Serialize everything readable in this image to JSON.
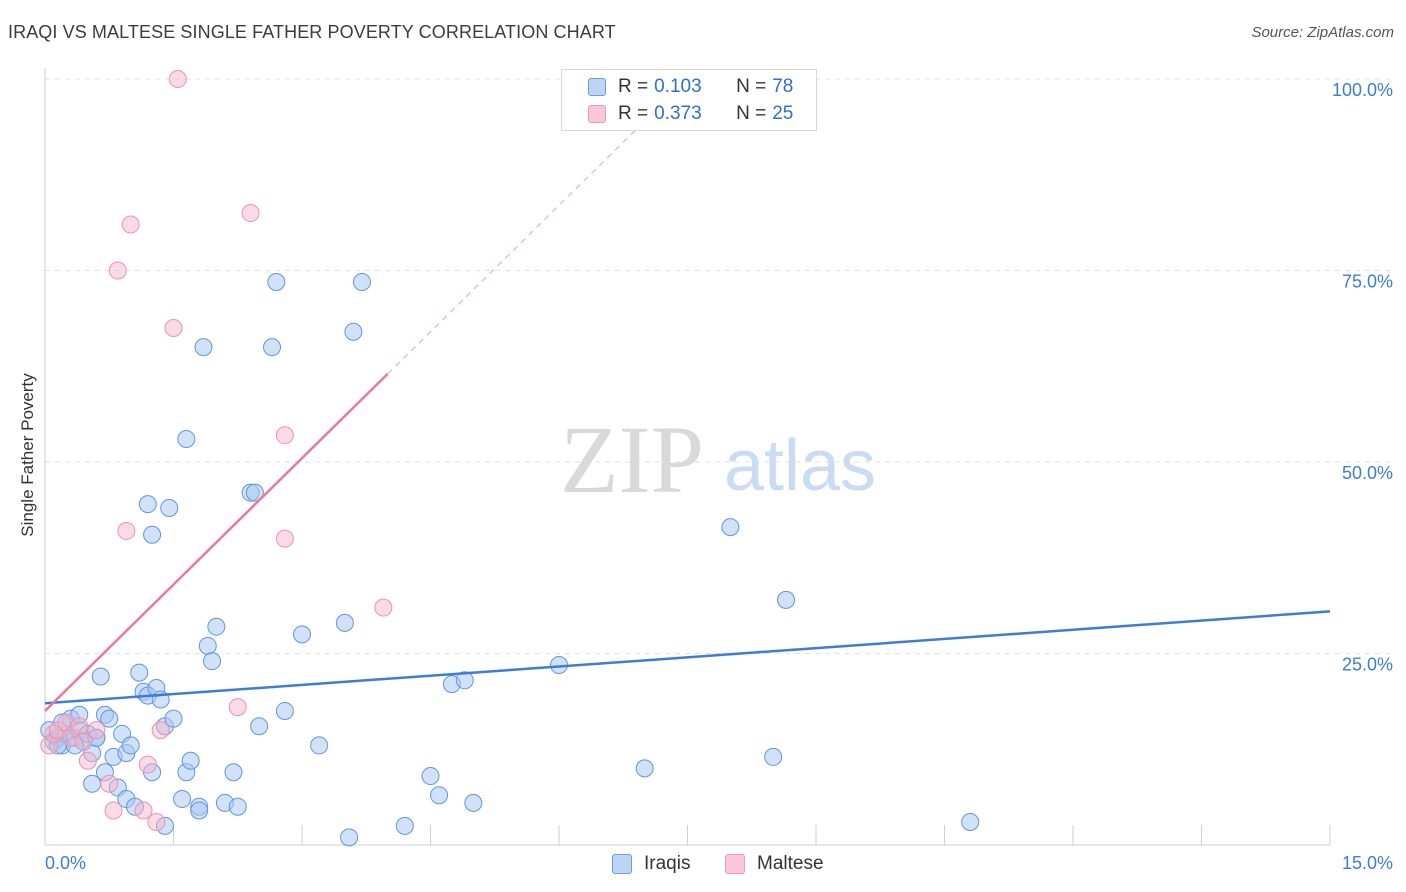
{
  "title": "IRAQI VS MALTESE SINGLE FATHER POVERTY CORRELATION CHART",
  "source": "Source: ZipAtlas.com",
  "watermark": {
    "zip": "ZIP",
    "atlas": "atlas"
  },
  "colors": {
    "iraqis": "#3b7dd8",
    "maltese": "#e87aa0",
    "iraqis_fill": "#a9c9f3",
    "maltese_fill": "#f6b6c9",
    "axis_text": "#3b7dd8"
  },
  "legend": {
    "rows": [
      {
        "r_label": "R =",
        "r_value": "0.103",
        "n_label": "N =",
        "n_value": "78"
      },
      {
        "r_label": "R =",
        "r_value": "0.373",
        "n_label": "N =",
        "n_value": "25"
      }
    ]
  },
  "bottom_legend": {
    "iraqis": "Iraqis",
    "maltese": "Maltese"
  },
  "chart_data": {
    "type": "scatter",
    "title": "IRAQI VS MALTESE SINGLE FATHER POVERTY CORRELATION CHART",
    "xlabel": "",
    "ylabel": "Single Father Poverty",
    "xlim": [
      0,
      15
    ],
    "ylim": [
      0,
      100
    ],
    "x_tick_labels": [
      "0.0%",
      "15.0%"
    ],
    "y_tick_labels": [
      "25.0%",
      "50.0%",
      "75.0%",
      "100.0%"
    ],
    "y_ticks": [
      25,
      50,
      75,
      100
    ],
    "grid": true,
    "series": [
      {
        "name": "Iraqis",
        "r": 0.103,
        "n": 78,
        "trend": {
          "x": [
            0,
            15
          ],
          "y": [
            18.5,
            30.5
          ]
        },
        "points": [
          [
            0.05,
            15
          ],
          [
            0.1,
            13.5
          ],
          [
            0.15,
            14
          ],
          [
            0.2,
            13
          ],
          [
            0.25,
            14.5
          ],
          [
            0.3,
            16.5
          ],
          [
            0.35,
            14
          ],
          [
            0.4,
            15
          ],
          [
            0.45,
            13.5
          ],
          [
            0.5,
            14.5
          ],
          [
            0.55,
            12
          ],
          [
            0.6,
            14
          ],
          [
            0.65,
            22
          ],
          [
            0.7,
            17
          ],
          [
            0.75,
            16.5
          ],
          [
            0.8,
            11.5
          ],
          [
            0.9,
            14.5
          ],
          [
            0.95,
            12
          ],
          [
            1.0,
            13
          ],
          [
            1.1,
            22.5
          ],
          [
            1.15,
            20
          ],
          [
            1.2,
            19.5
          ],
          [
            1.25,
            9.5
          ],
          [
            1.3,
            20.5
          ],
          [
            1.35,
            19
          ],
          [
            1.4,
            15.5
          ],
          [
            1.5,
            16.5
          ],
          [
            1.6,
            6
          ],
          [
            1.65,
            9.5
          ],
          [
            1.7,
            11
          ],
          [
            1.8,
            5
          ],
          [
            1.9,
            26
          ],
          [
            1.95,
            24
          ],
          [
            2.0,
            28.5
          ],
          [
            2.1,
            5.5
          ],
          [
            2.2,
            9.5
          ],
          [
            2.5,
            15.5
          ],
          [
            2.8,
            17.5
          ],
          [
            3.0,
            27.5
          ],
          [
            3.2,
            13
          ],
          [
            3.5,
            29
          ],
          [
            3.6,
            67
          ],
          [
            3.7,
            73.5
          ],
          [
            3.55,
            1
          ],
          [
            4.2,
            2.5
          ],
          [
            4.5,
            9
          ],
          [
            4.6,
            6.5
          ],
          [
            4.75,
            21
          ],
          [
            4.9,
            21.5
          ],
          [
            5.0,
            5.5
          ],
          [
            1.45,
            44
          ],
          [
            1.2,
            44.5
          ],
          [
            1.25,
            40.5
          ],
          [
            1.65,
            53
          ],
          [
            1.85,
            65
          ],
          [
            2.4,
            46
          ],
          [
            2.45,
            46
          ],
          [
            2.65,
            65
          ],
          [
            2.7,
            73.5
          ],
          [
            6.0,
            23.5
          ],
          [
            7.0,
            10
          ],
          [
            8.0,
            41.5
          ],
          [
            8.5,
            11.5
          ],
          [
            8.65,
            32
          ],
          [
            10.8,
            3
          ],
          [
            0.2,
            16
          ],
          [
            0.35,
            13
          ],
          [
            0.55,
            8
          ],
          [
            0.7,
            9.5
          ],
          [
            0.85,
            7.5
          ],
          [
            0.95,
            6
          ],
          [
            1.05,
            5
          ],
          [
            1.4,
            2.5
          ],
          [
            1.8,
            4.5
          ],
          [
            2.25,
            5
          ],
          [
            0.15,
            13
          ],
          [
            0.6,
            14
          ],
          [
            0.4,
            17
          ]
        ]
      },
      {
        "name": "Maltese",
        "r": 0.373,
        "n": 25,
        "trend": {
          "x": [
            0,
            4.0
          ],
          "y": [
            17.5,
            61.5
          ],
          "dashed_to": {
            "x": 7.5,
            "y": 100
          }
        },
        "points": [
          [
            0.05,
            13
          ],
          [
            0.1,
            14.5
          ],
          [
            0.15,
            15
          ],
          [
            0.25,
            16
          ],
          [
            0.3,
            14
          ],
          [
            0.4,
            15.5
          ],
          [
            0.45,
            13.5
          ],
          [
            0.5,
            11
          ],
          [
            0.6,
            15
          ],
          [
            0.75,
            8
          ],
          [
            0.8,
            4.5
          ],
          [
            0.85,
            75
          ],
          [
            0.95,
            41
          ],
          [
            1.0,
            81
          ],
          [
            1.15,
            4.5
          ],
          [
            1.2,
            10.5
          ],
          [
            1.3,
            3
          ],
          [
            1.35,
            15
          ],
          [
            1.5,
            67.5
          ],
          [
            1.55,
            100
          ],
          [
            2.25,
            18
          ],
          [
            2.4,
            82.5
          ],
          [
            2.8,
            53.5
          ],
          [
            2.8,
            40
          ],
          [
            3.95,
            31
          ]
        ]
      }
    ]
  }
}
